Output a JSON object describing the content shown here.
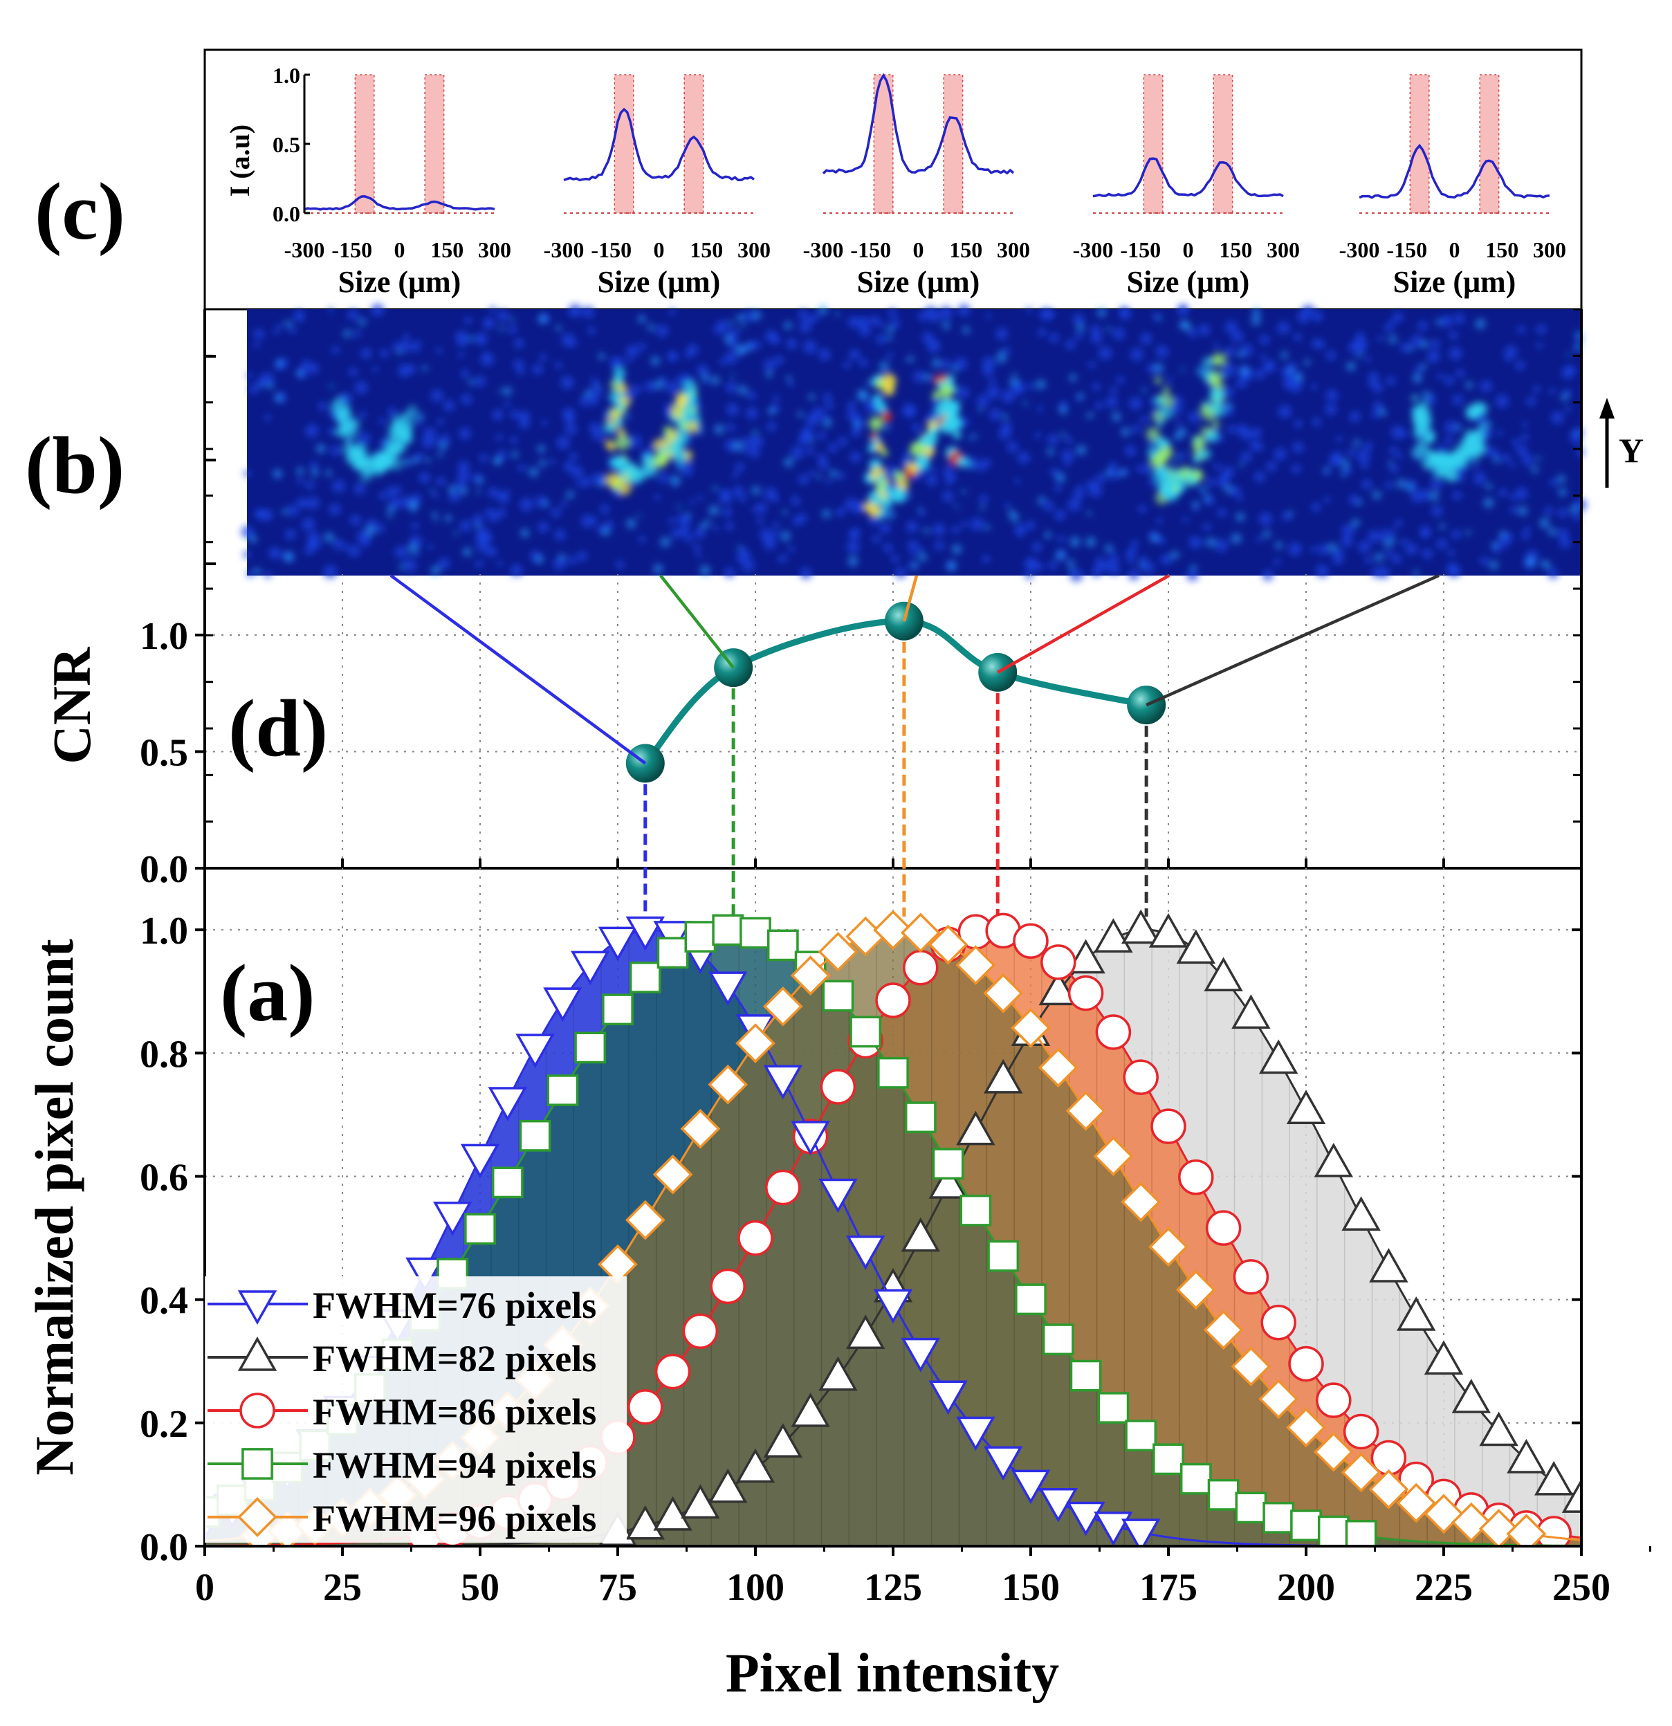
{
  "figure": {
    "panel_labels": {
      "a": "(a)",
      "b": "(b)",
      "c": "(c)",
      "d": "(d)"
    },
    "y_arrow_label": "Y"
  },
  "colors": {
    "blue": "#2d2de6",
    "black": "#333333",
    "red": "#e6262b",
    "green": "#2e9a2e",
    "orange": "#f0922a",
    "teal": "#0f8a84",
    "fill_blue": "#2b3bd9",
    "fill_green": "#1f5f6e",
    "fill_olive": "#7f6f3a",
    "fill_orange": "#f07a45",
    "fill_gray": "#d9d9d9",
    "image_bg": "#0b1a8a",
    "profile_line": "#2424c8",
    "shade": "#f4a7a7"
  },
  "chart_data": [
    {
      "id": "a",
      "type": "area",
      "title": "",
      "xlabel": "Pixel intensity",
      "ylabel": "Normalized pixel count",
      "xlim": [
        0,
        250
      ],
      "ylim": [
        0,
        1.1
      ],
      "x_ticks": [
        0,
        25,
        50,
        75,
        100,
        125,
        150,
        175,
        200,
        225,
        250
      ],
      "x_tick_labels": [
        "0",
        "25",
        "50",
        "75",
        "100",
        "125",
        "150",
        "175",
        "200",
        "225",
        "250"
      ],
      "y_ticks": [
        0.0,
        0.2,
        0.4,
        0.6,
        0.8,
        1.0
      ],
      "y_tick_labels": [
        "0.0",
        "0.2",
        "0.4",
        "0.6",
        "0.8",
        "1.0"
      ],
      "grid": true,
      "legend_position": "bottom-left",
      "series": [
        {
          "name": "FWHM=76 pixels",
          "marker": "triangle-down",
          "color_key": "blue",
          "center": 81,
          "fwhm": 76
        },
        {
          "name": "FWHM=82 pixels",
          "marker": "triangle-up",
          "color_key": "black",
          "center": 171,
          "fwhm": 82
        },
        {
          "name": "FWHM=86 pixels",
          "marker": "circle",
          "color_key": "red",
          "center": 143,
          "fwhm": 86
        },
        {
          "name": "FWHM=94 pixels",
          "marker": "square",
          "color_key": "green",
          "center": 96,
          "fwhm": 94
        },
        {
          "name": "FWHM=96 pixels",
          "marker": "diamond",
          "color_key": "orange",
          "center": 126,
          "fwhm": 96
        }
      ]
    },
    {
      "id": "d",
      "type": "line",
      "ylabel": "CNR",
      "ylim": [
        0,
        1.35
      ],
      "y_ticks": [
        0.0,
        0.5,
        1.0
      ],
      "y_tick_labels": [
        "0.0",
        "0.5",
        "1.0"
      ],
      "x": [
        80,
        96,
        127,
        144,
        171
      ],
      "values": [
        0.45,
        0.86,
        1.06,
        0.84,
        0.7
      ],
      "guide_colors": [
        "blue",
        "green",
        "orange",
        "red",
        "black"
      ]
    },
    {
      "id": "c",
      "type": "line",
      "ylabel": "I (a.u)",
      "xlabel": "Size (μm)",
      "xlim": [
        -300,
        300
      ],
      "ylim": [
        0,
        1.0
      ],
      "x_tick_labels": [
        "-300",
        "-150",
        "0",
        "150",
        "300"
      ],
      "y_tick_labels": [
        "0.0",
        "0.5",
        "1.0"
      ],
      "shaded_bands": [
        [
          -140,
          -80
        ],
        [
          80,
          140
        ]
      ],
      "profiles": [
        {
          "peak_left": 0.12,
          "peak_right": 0.08,
          "base": 0.03
        },
        {
          "peak_left": 0.75,
          "peak_right": 0.54,
          "base": 0.25
        },
        {
          "peak_left": 1.0,
          "peak_right": 0.7,
          "base": 0.3
        },
        {
          "peak_left": 0.4,
          "peak_right": 0.37,
          "base": 0.13
        },
        {
          "peak_left": 0.48,
          "peak_right": 0.38,
          "base": 0.12
        }
      ]
    }
  ]
}
